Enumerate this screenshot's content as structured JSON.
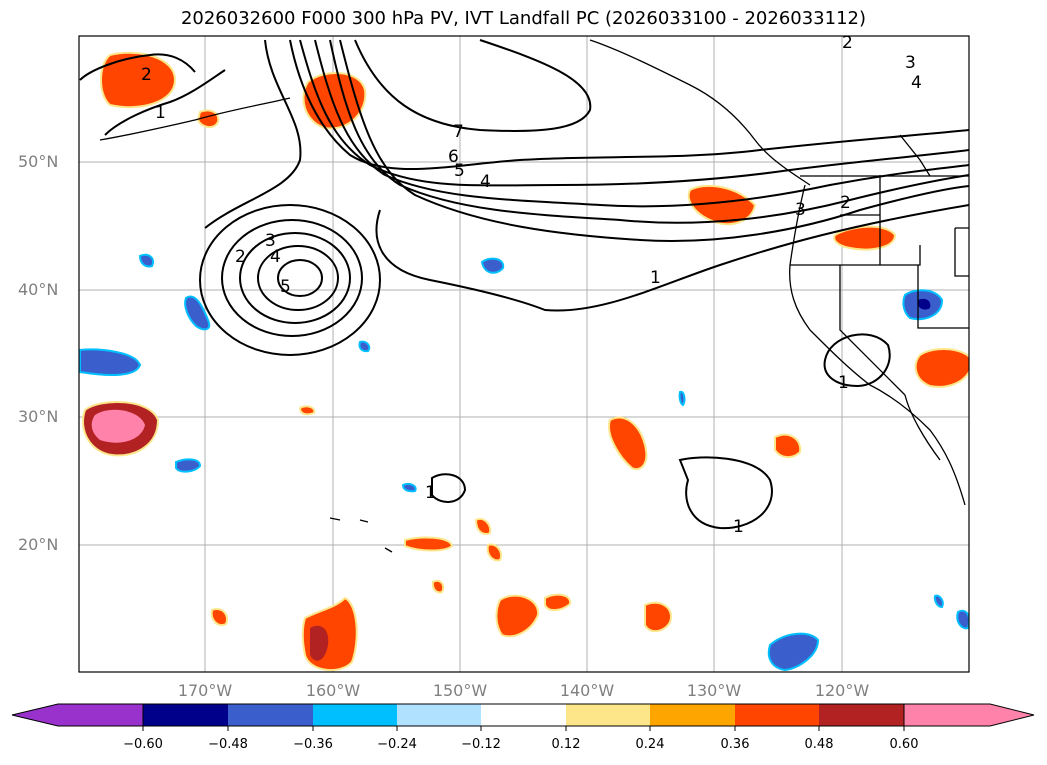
{
  "title": "2026032600 F000 300 hPa PV, IVT Landfall PC (2026033100 - 2026033112)",
  "map": {
    "lat_labels": [
      "50°N",
      "40°N",
      "30°N",
      "20°N"
    ],
    "lon_labels": [
      "170°W",
      "160°W",
      "150°W",
      "140°W",
      "130°W",
      "120°W"
    ],
    "contour_labels": [
      "2",
      "1",
      "7",
      "6",
      "5",
      "4",
      "3",
      "2",
      "1",
      "2",
      "3",
      "4",
      "5",
      "3",
      "2",
      "1",
      "1",
      "1",
      "1",
      "2",
      "3",
      "4"
    ]
  },
  "colorbar": {
    "ticks": [
      "−0.60",
      "−0.48",
      "−0.36",
      "−0.24",
      "−0.12",
      "0.12",
      "0.24",
      "0.36",
      "0.48",
      "0.60"
    ],
    "colors": [
      "#9932cc",
      "#00008b",
      "#3a5fcd",
      "#00bfff",
      "#b0e2ff",
      "#ffffff",
      "#fde68a",
      "#ffa500",
      "#ff4500",
      "#b22222",
      "#ff82ab"
    ]
  }
}
